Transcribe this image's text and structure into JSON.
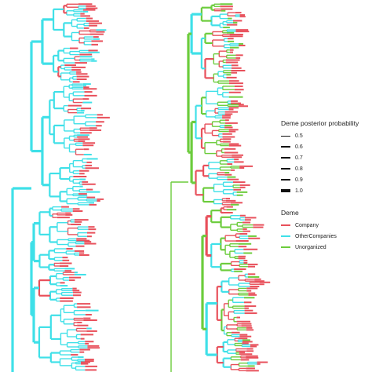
{
  "legend_probability": {
    "title": "Deme posterior probability",
    "items": [
      {
        "label": "0.5",
        "weight": 1
      },
      {
        "label": "0.6",
        "weight": 1.4
      },
      {
        "label": "0.7",
        "weight": 1.8
      },
      {
        "label": "0.8",
        "weight": 2.2
      },
      {
        "label": "0.9",
        "weight": 2.6
      },
      {
        "label": "1.0",
        "weight": 3.2
      }
    ]
  },
  "legend_deme": {
    "title": "Deme",
    "items": [
      {
        "label": "Company",
        "color": "#e8505b"
      },
      {
        "label": "OtherCompanies",
        "color": "#3fe0e8"
      },
      {
        "label": "Unorganized",
        "color": "#6ccc3c"
      }
    ]
  },
  "colors": {
    "company": "#e8505b",
    "other_companies": "#3fe0e8",
    "unorganized": "#6ccc3c"
  }
}
